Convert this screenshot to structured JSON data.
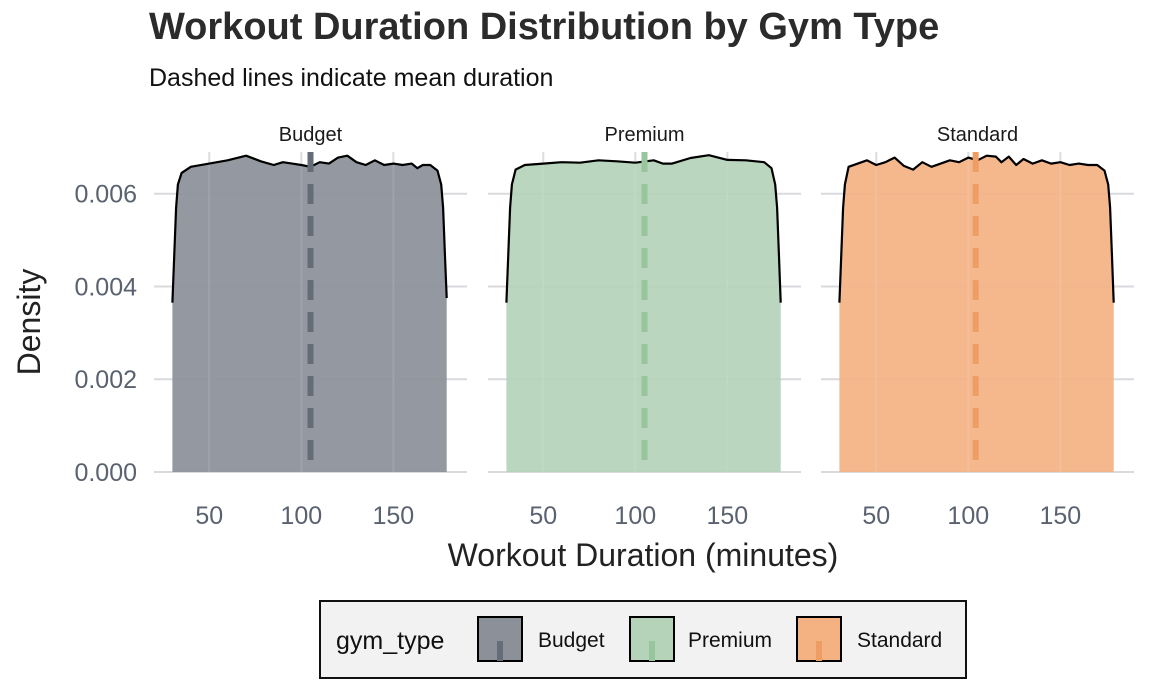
{
  "title": "Workout Duration Distribution by Gym Type",
  "subtitle": "Dashed lines indicate mean duration",
  "colors": {
    "Budget": "#8b9099",
    "Premium": "#b4d3b9",
    "Standard": "#f4b283",
    "Budget_mean": "#646c77",
    "Premium_mean": "#98c69c",
    "Standard_mean": "#ee9d64",
    "grid": "#d8dadd",
    "legend_bg": "#f2f2f2"
  },
  "chart_data": {
    "type": "area",
    "subtype": "faceted-density",
    "xlabel": "Workout Duration (minutes)",
    "ylabel": "Density",
    "xlim": [
      20,
      190
    ],
    "ylim": [
      0,
      0.0069
    ],
    "xticks": [
      50,
      100,
      150
    ],
    "yticks": [
      0,
      0.002,
      0.004,
      0.006
    ],
    "ytick_labels": [
      "0.000",
      "0.002",
      "0.004",
      "0.006"
    ],
    "grid": true,
    "legend": {
      "title": "gym_type",
      "position": "bottom",
      "entries": [
        "Budget",
        "Premium",
        "Standard"
      ]
    },
    "facets": [
      {
        "name": "Budget",
        "mean": 105,
        "points": [
          [
            30,
            0.00365
          ],
          [
            31,
            0.0047
          ],
          [
            32,
            0.0057
          ],
          [
            33,
            0.0062
          ],
          [
            35,
            0.00645
          ],
          [
            40,
            0.00658
          ],
          [
            50,
            0.00665
          ],
          [
            60,
            0.00672
          ],
          [
            70,
            0.00682
          ],
          [
            78,
            0.0067
          ],
          [
            85,
            0.00662
          ],
          [
            90,
            0.00668
          ],
          [
            95,
            0.00665
          ],
          [
            100,
            0.00662
          ],
          [
            105,
            0.00658
          ],
          [
            110,
            0.00668
          ],
          [
            115,
            0.00665
          ],
          [
            120,
            0.00678
          ],
          [
            125,
            0.00682
          ],
          [
            130,
            0.00668
          ],
          [
            135,
            0.00662
          ],
          [
            140,
            0.00672
          ],
          [
            145,
            0.00662
          ],
          [
            150,
            0.00665
          ],
          [
            155,
            0.00662
          ],
          [
            160,
            0.00665
          ],
          [
            163,
            0.00655
          ],
          [
            166,
            0.00662
          ],
          [
            170,
            0.00662
          ],
          [
            174,
            0.0065
          ],
          [
            176,
            0.0062
          ],
          [
            177,
            0.0057
          ],
          [
            178,
            0.0047
          ],
          [
            179,
            0.00375
          ]
        ]
      },
      {
        "name": "Premium",
        "mean": 105,
        "points": [
          [
            30,
            0.00365
          ],
          [
            31,
            0.0047
          ],
          [
            32,
            0.0057
          ],
          [
            33,
            0.0062
          ],
          [
            35,
            0.00652
          ],
          [
            40,
            0.00662
          ],
          [
            50,
            0.00665
          ],
          [
            60,
            0.00668
          ],
          [
            70,
            0.00667
          ],
          [
            80,
            0.00672
          ],
          [
            90,
            0.0067
          ],
          [
            100,
            0.00667
          ],
          [
            110,
            0.00672
          ],
          [
            115,
            0.00665
          ],
          [
            120,
            0.00665
          ],
          [
            130,
            0.00677
          ],
          [
            140,
            0.00683
          ],
          [
            150,
            0.00673
          ],
          [
            160,
            0.00672
          ],
          [
            170,
            0.00668
          ],
          [
            174,
            0.00655
          ],
          [
            176,
            0.0062
          ],
          [
            177,
            0.0057
          ],
          [
            178,
            0.0047
          ],
          [
            179,
            0.00365
          ]
        ]
      },
      {
        "name": "Standard",
        "mean": 104,
        "points": [
          [
            30,
            0.00365
          ],
          [
            31,
            0.0047
          ],
          [
            32,
            0.0057
          ],
          [
            33,
            0.0062
          ],
          [
            35,
            0.00658
          ],
          [
            40,
            0.00665
          ],
          [
            45,
            0.00672
          ],
          [
            50,
            0.00662
          ],
          [
            55,
            0.00668
          ],
          [
            60,
            0.00678
          ],
          [
            65,
            0.0066
          ],
          [
            70,
            0.00652
          ],
          [
            75,
            0.00668
          ],
          [
            80,
            0.00658
          ],
          [
            85,
            0.00665
          ],
          [
            90,
            0.00672
          ],
          [
            95,
            0.00668
          ],
          [
            100,
            0.00678
          ],
          [
            105,
            0.00672
          ],
          [
            110,
            0.00682
          ],
          [
            115,
            0.0068
          ],
          [
            118,
            0.00668
          ],
          [
            122,
            0.0068
          ],
          [
            126,
            0.00662
          ],
          [
            130,
            0.00675
          ],
          [
            135,
            0.00665
          ],
          [
            140,
            0.00672
          ],
          [
            145,
            0.00665
          ],
          [
            150,
            0.00668
          ],
          [
            155,
            0.00662
          ],
          [
            160,
            0.00665
          ],
          [
            165,
            0.00662
          ],
          [
            170,
            0.00662
          ],
          [
            174,
            0.0065
          ],
          [
            176,
            0.0062
          ],
          [
            177,
            0.0057
          ],
          [
            178,
            0.0047
          ],
          [
            179,
            0.00365
          ]
        ]
      }
    ]
  }
}
